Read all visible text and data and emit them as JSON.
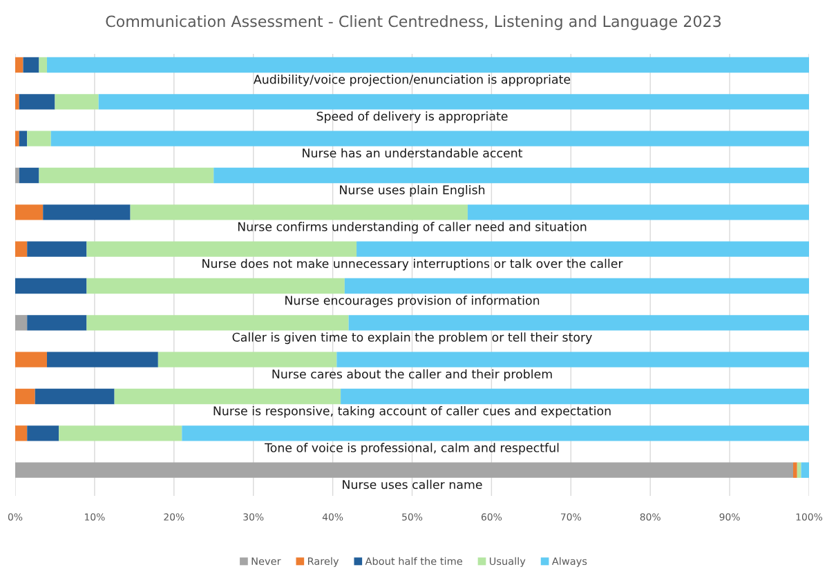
{
  "chart_data": {
    "type": "bar",
    "orientation": "horizontal",
    "stacked": true,
    "title": "Communication Assessment - Client Centredness, Listening and Language 2023",
    "categories": [
      "Audibility/voice projection/enunciation is appropriate",
      "Speed of delivery is appropriate",
      "Nurse has an understandable accent",
      "Nurse uses plain English",
      "Nurse confirms understanding of caller need and situation",
      "Nurse does not make unnecessary interruptions or talk over the caller",
      "Nurse encourages provision of information",
      "Caller is given time to explain the problem or tell their story",
      "Nurse cares about the caller and their problem",
      "Nurse is responsive, taking account of caller cues and expectation",
      "Tone of voice is professional, calm and respectful",
      "Nurse uses caller name"
    ],
    "series": [
      {
        "name": "Never",
        "color": "#a5a5a5",
        "values": [
          0,
          0,
          0,
          0.5,
          0,
          0,
          0,
          1.5,
          0,
          0,
          0,
          98
        ]
      },
      {
        "name": "Rarely",
        "color": "#ed7d31",
        "values": [
          1,
          0.5,
          0.5,
          0,
          3.5,
          1.5,
          0,
          0,
          4,
          2.5,
          1.5,
          0.5
        ]
      },
      {
        "name": "About half the time",
        "color": "#225f9a",
        "values": [
          2,
          4.5,
          1,
          2.5,
          11,
          7.5,
          9,
          7.5,
          14,
          10,
          4,
          0
        ]
      },
      {
        "name": "Usually",
        "color": "#b5e6a2",
        "values": [
          1,
          5.5,
          3,
          22,
          42.5,
          34,
          32.5,
          33,
          22.5,
          28.5,
          15.5,
          0.5
        ]
      },
      {
        "name": "Always",
        "color": "#61cbf3",
        "values": [
          96,
          89.5,
          95.5,
          75,
          43,
          57,
          58.5,
          58,
          59.5,
          59,
          79,
          1
        ]
      }
    ],
    "xlim": [
      0,
      100
    ],
    "xticks": [
      {
        "value": 0,
        "label": "0%"
      },
      {
        "value": 10,
        "label": "10%"
      },
      {
        "value": 20,
        "label": "20%"
      },
      {
        "value": 30,
        "label": "30%"
      },
      {
        "value": 40,
        "label": "40%"
      },
      {
        "value": 50,
        "label": "50%"
      },
      {
        "value": 60,
        "label": "60%"
      },
      {
        "value": 70,
        "label": "70%"
      },
      {
        "value": 80,
        "label": "80%"
      },
      {
        "value": 90,
        "label": "90%"
      },
      {
        "value": 100,
        "label": "100%"
      }
    ],
    "grid": "x",
    "legend": "bottom"
  }
}
